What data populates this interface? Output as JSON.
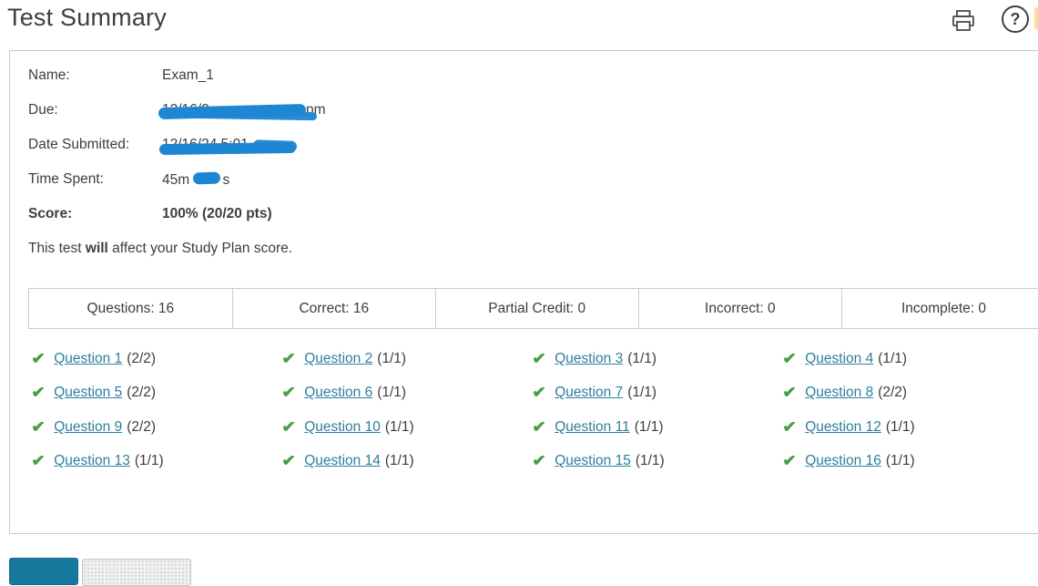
{
  "page": {
    "title": "Test Summary"
  },
  "header": {
    "print_icon": "printer-icon",
    "help_icon": "question-mark-icon",
    "help_glyph": "?"
  },
  "summary": {
    "name_label": "Name:",
    "name_value": "Exam_1",
    "due_label": "Due:",
    "due_visible_start": "12/16/2",
    "due_visible_end": "pm",
    "submitted_label": "Date Submitted:",
    "submitted_visible": "12/16/24 5:01",
    "time_label": "Time Spent:",
    "time_prefix": "45m",
    "time_suffix": "s",
    "score_label": "Score:",
    "score_value": "100% (20/20 pts)",
    "statement_pre": "This test ",
    "statement_bold": "will",
    "statement_post": " affect your Study Plan score."
  },
  "summary_table": {
    "cells": [
      "Questions: 16",
      "Correct: 16",
      "Partial Credit: 0",
      "Incorrect: 0",
      "Incomplete: 0"
    ]
  },
  "questions": [
    {
      "label": "Question 1",
      "points": "(2/2)"
    },
    {
      "label": "Question 2",
      "points": "(1/1)"
    },
    {
      "label": "Question 3",
      "points": "(1/1)"
    },
    {
      "label": "Question 4",
      "points": "(1/1)"
    },
    {
      "label": "Question 5",
      "points": "(2/2)"
    },
    {
      "label": "Question 6",
      "points": "(1/1)"
    },
    {
      "label": "Question 7",
      "points": "(1/1)"
    },
    {
      "label": "Question 8",
      "points": "(2/2)"
    },
    {
      "label": "Question 9",
      "points": "(2/2)"
    },
    {
      "label": "Question 10",
      "points": "(1/1)"
    },
    {
      "label": "Question 11",
      "points": "(1/1)"
    },
    {
      "label": "Question 12",
      "points": "(1/1)"
    },
    {
      "label": "Question 13",
      "points": "(1/1)"
    },
    {
      "label": "Question 14",
      "points": "(1/1)"
    },
    {
      "label": "Question 15",
      "points": "(1/1)"
    },
    {
      "label": "Question 16",
      "points": "(1/1)"
    }
  ],
  "colors": {
    "link": "#2d7f9e",
    "check_green": "#43a047",
    "scribble_blue": "#1e87d3",
    "primary_button": "#17799e",
    "border": "#cccccc"
  },
  "check_glyph": "✔"
}
